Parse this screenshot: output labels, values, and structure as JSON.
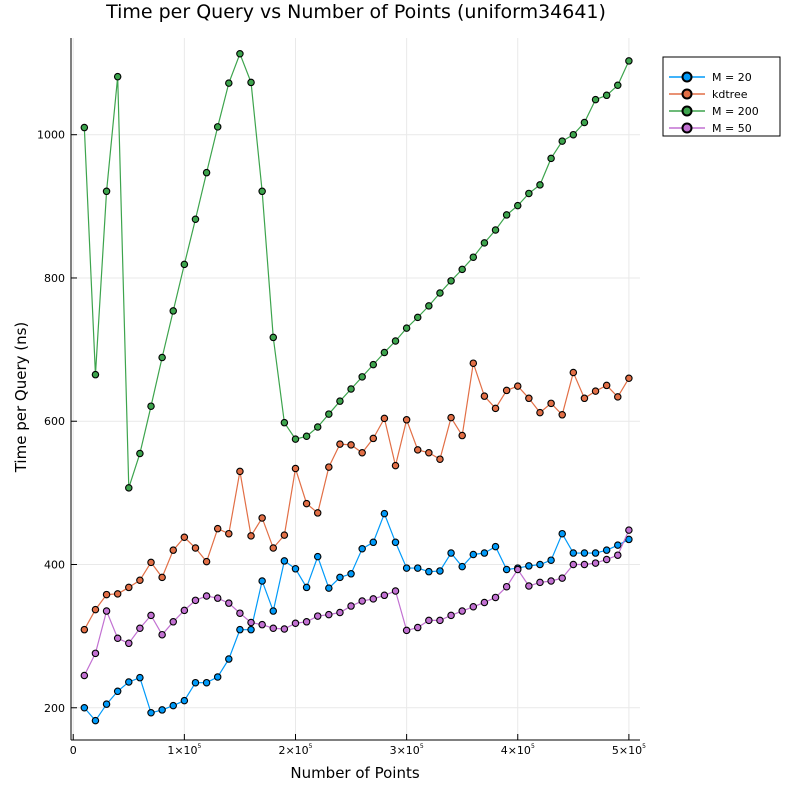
{
  "chart_data": {
    "type": "line",
    "title": "Time per Query vs Number of Points (uniform34641)",
    "xlabel": "Number of Points",
    "ylabel": "Time per Query (ns)",
    "xlim": [
      -2000,
      510000
    ],
    "ylim": [
      155,
      1135
    ],
    "xticks": [
      {
        "value": 0,
        "base": "0",
        "exp": ""
      },
      {
        "value": 100000,
        "base": "1×10",
        "exp": "5"
      },
      {
        "value": 200000,
        "base": "2×10",
        "exp": "5"
      },
      {
        "value": 300000,
        "base": "3×10",
        "exp": "5"
      },
      {
        "value": 400000,
        "base": "4×10",
        "exp": "5"
      },
      {
        "value": 500000,
        "base": "5×10",
        "exp": "5"
      }
    ],
    "yticks": [
      200,
      400,
      600,
      800,
      1000
    ],
    "grid": true,
    "legend_position": "top-right",
    "x": [
      10000,
      20000,
      30000,
      40000,
      50000,
      60000,
      70000,
      80000,
      90000,
      100000,
      110000,
      120000,
      130000,
      140000,
      150000,
      160000,
      170000,
      180000,
      190000,
      200000,
      210000,
      220000,
      230000,
      240000,
      250000,
      260000,
      270000,
      280000,
      290000,
      300000,
      310000,
      320000,
      330000,
      340000,
      350000,
      360000,
      370000,
      380000,
      390000,
      400000,
      410000,
      420000,
      430000,
      440000,
      450000,
      460000,
      470000,
      480000,
      490000,
      500000
    ],
    "series": [
      {
        "name": "M = 20",
        "color": "#009af9",
        "values": [
          200,
          182,
          205,
          223,
          236,
          242,
          193,
          197,
          203,
          210,
          235,
          235,
          243,
          268,
          309,
          309,
          377,
          335,
          405,
          394,
          368,
          411,
          367,
          382,
          387,
          422,
          431,
          471,
          431,
          395,
          395,
          390,
          391,
          416,
          397,
          414,
          416,
          425,
          393,
          395,
          398,
          400,
          406,
          443,
          416,
          416,
          416,
          420,
          427,
          435
        ]
      },
      {
        "name": "kdtree",
        "color": "#e26f46",
        "values": [
          309,
          337,
          358,
          359,
          368,
          378,
          403,
          382,
          420,
          438,
          423,
          404,
          450,
          443,
          530,
          440,
          465,
          423,
          441,
          534,
          485,
          472,
          536,
          568,
          567,
          556,
          576,
          604,
          538,
          602,
          560,
          556,
          547,
          605,
          580,
          681,
          635,
          618,
          643,
          649,
          632,
          612,
          625,
          609,
          668,
          632,
          642,
          650,
          634,
          660
        ]
      },
      {
        "name": "M = 200",
        "color": "#3da44d",
        "values": [
          1010,
          665,
          921,
          1081,
          507,
          555,
          621,
          689,
          754,
          819,
          882,
          947,
          1011,
          1072,
          1113,
          1073,
          921,
          717,
          598,
          575,
          579,
          592,
          610,
          628,
          645,
          662,
          679,
          696,
          712,
          730,
          745,
          761,
          779,
          796,
          812,
          829,
          849,
          867,
          888,
          901,
          918,
          930,
          967,
          991,
          1000,
          1017,
          1049,
          1055,
          1069,
          1103
        ]
      },
      {
        "name": "M = 50",
        "color": "#c271d2",
        "values": [
          245,
          276,
          335,
          297,
          290,
          311,
          329,
          302,
          320,
          336,
          350,
          356,
          353,
          346,
          332,
          319,
          316,
          311,
          310,
          318,
          320,
          328,
          330,
          333,
          342,
          349,
          352,
          357,
          363,
          308,
          312,
          322,
          322,
          329,
          335,
          341,
          347,
          354,
          369,
          393,
          370,
          375,
          377,
          381,
          400,
          400,
          402,
          407,
          413,
          448
        ]
      }
    ]
  }
}
